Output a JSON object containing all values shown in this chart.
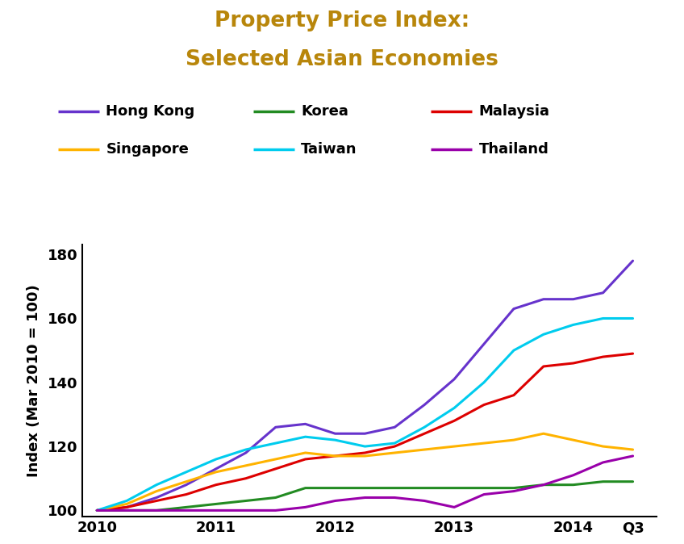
{
  "title_line1": "Property Price Index:",
  "title_line2": "Selected Asian Economies",
  "title_color": "#B8860B",
  "ylabel": "Index (Mar 2010 = 100)",
  "background_color": "#ffffff",
  "ylim": [
    98,
    183
  ],
  "yticks": [
    100,
    120,
    140,
    160,
    180
  ],
  "series": {
    "Hong Kong": {
      "color": "#6633CC",
      "data_x": [
        0,
        1,
        2,
        3,
        4,
        5,
        6,
        7,
        8,
        9,
        10,
        11,
        12,
        13,
        14,
        15,
        16,
        17,
        18
      ],
      "data_y": [
        100,
        101,
        104,
        108,
        113,
        118,
        126,
        127,
        124,
        124,
        126,
        133,
        141,
        152,
        163,
        166,
        166,
        168,
        178
      ]
    },
    "Korea": {
      "color": "#228B22",
      "data_x": [
        0,
        1,
        2,
        3,
        4,
        5,
        6,
        7,
        8,
        9,
        10,
        11,
        12,
        13,
        14,
        15,
        16,
        17,
        18
      ],
      "data_y": [
        100,
        100,
        100,
        101,
        102,
        103,
        104,
        107,
        107,
        107,
        107,
        107,
        107,
        107,
        107,
        108,
        108,
        109,
        109
      ]
    },
    "Malaysia": {
      "color": "#DD0000",
      "data_x": [
        0,
        1,
        2,
        3,
        4,
        5,
        6,
        7,
        8,
        9,
        10,
        11,
        12,
        13,
        14,
        15,
        16,
        17,
        18
      ],
      "data_y": [
        100,
        101,
        103,
        105,
        108,
        110,
        113,
        116,
        117,
        118,
        120,
        124,
        128,
        133,
        136,
        145,
        146,
        148,
        149
      ]
    },
    "Singapore": {
      "color": "#FFB300",
      "data_x": [
        0,
        1,
        2,
        3,
        4,
        5,
        6,
        7,
        8,
        9,
        10,
        11,
        12,
        13,
        14,
        15,
        16,
        17,
        18
      ],
      "data_y": [
        100,
        102,
        106,
        109,
        112,
        114,
        116,
        118,
        117,
        117,
        118,
        119,
        120,
        121,
        122,
        124,
        122,
        120,
        119
      ]
    },
    "Taiwan": {
      "color": "#00CCEE",
      "data_x": [
        0,
        1,
        2,
        3,
        4,
        5,
        6,
        7,
        8,
        9,
        10,
        11,
        12,
        13,
        14,
        15,
        16,
        17,
        18
      ],
      "data_y": [
        100,
        103,
        108,
        112,
        116,
        119,
        121,
        123,
        122,
        120,
        121,
        126,
        132,
        140,
        150,
        155,
        158,
        160,
        160
      ]
    },
    "Thailand": {
      "color": "#9900AA",
      "data_x": [
        0,
        1,
        2,
        3,
        4,
        5,
        6,
        7,
        8,
        9,
        10,
        11,
        12,
        13,
        14,
        15,
        16,
        17,
        18
      ],
      "data_y": [
        100,
        100,
        100,
        100,
        100,
        100,
        100,
        101,
        103,
        104,
        104,
        103,
        101,
        105,
        106,
        108,
        111,
        115,
        117
      ]
    }
  },
  "legend_order": [
    "Hong Kong",
    "Korea",
    "Malaysia",
    "Singapore",
    "Taiwan",
    "Thailand"
  ],
  "xtick_positions": [
    0,
    4,
    8,
    12,
    16,
    18
  ],
  "xtick_labels": [
    "2010",
    "2011",
    "2012",
    "2013",
    "2014",
    "Q3"
  ],
  "linewidth": 2.2,
  "title_fontsize": 19,
  "tick_fontsize": 13,
  "ylabel_fontsize": 13,
  "legend_fontsize": 13
}
